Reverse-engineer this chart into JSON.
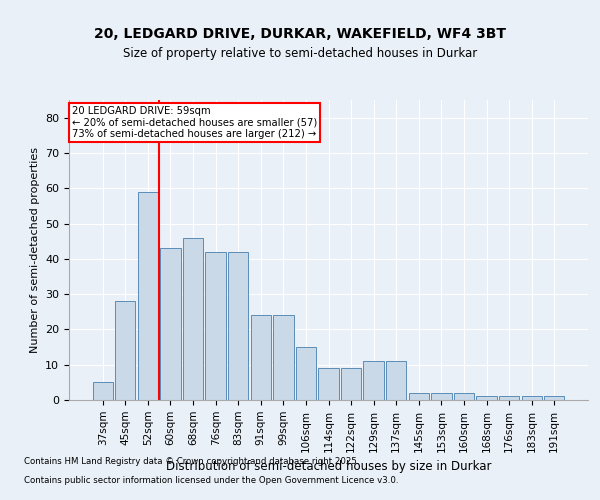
{
  "title1": "20, LEDGARD DRIVE, DURKAR, WAKEFIELD, WF4 3BT",
  "title2": "Size of property relative to semi-detached houses in Durkar",
  "xlabel": "Distribution of semi-detached houses by size in Durkar",
  "ylabel": "Number of semi-detached properties",
  "categories": [
    "37sqm",
    "45sqm",
    "52sqm",
    "60sqm",
    "68sqm",
    "76sqm",
    "83sqm",
    "91sqm",
    "99sqm",
    "106sqm",
    "114sqm",
    "122sqm",
    "129sqm",
    "137sqm",
    "145sqm",
    "153sqm",
    "160sqm",
    "168sqm",
    "176sqm",
    "183sqm",
    "191sqm"
  ],
  "values": [
    5,
    28,
    59,
    43,
    46,
    42,
    42,
    24,
    24,
    15,
    9,
    9,
    11,
    11,
    2,
    2,
    2,
    1,
    1,
    1,
    1
  ],
  "bar_color": "#c9d9e8",
  "bar_edge_color": "#5b8db8",
  "vline_color": "red",
  "annotation_title": "20 LEDGARD DRIVE: 59sqm",
  "annotation_line1": "← 20% of semi-detached houses are smaller (57)",
  "annotation_line2": "73% of semi-detached houses are larger (212) →",
  "annotation_box_color": "white",
  "annotation_box_edge_color": "red",
  "ylim": [
    0,
    85
  ],
  "yticks": [
    0,
    10,
    20,
    30,
    40,
    50,
    60,
    70,
    80
  ],
  "footnote1": "Contains HM Land Registry data © Crown copyright and database right 2025.",
  "footnote2": "Contains public sector information licensed under the Open Government Licence v3.0.",
  "bg_color": "#eaf0f8",
  "plot_bg_color": "#eaf0f8"
}
